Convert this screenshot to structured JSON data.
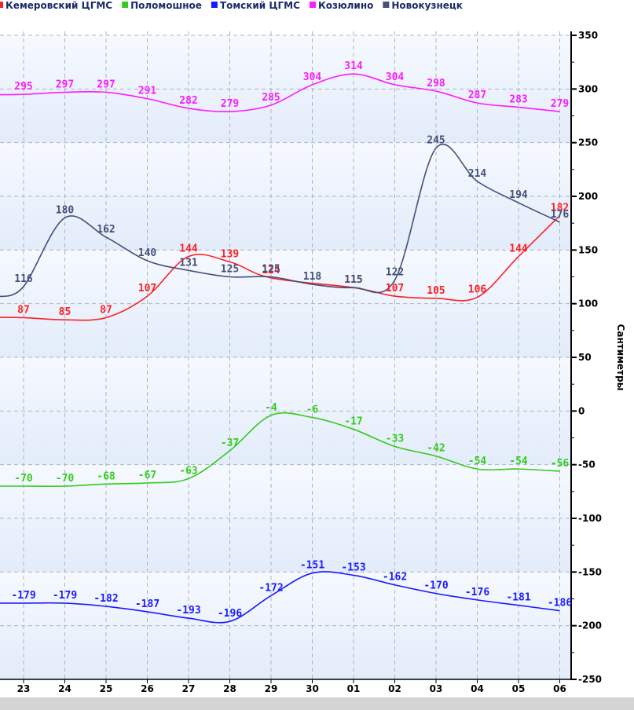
{
  "chart_data": {
    "type": "line",
    "ylabel": "Сантиметры",
    "ylim": [
      -250,
      350
    ],
    "y_ticks": [
      350,
      300,
      250,
      200,
      150,
      100,
      50,
      0,
      -50,
      -100,
      -150,
      -200,
      -250
    ],
    "categories": [
      "23",
      "24",
      "25",
      "26",
      "27",
      "28",
      "29",
      "30",
      "01",
      "02",
      "03",
      "04",
      "05",
      "06"
    ],
    "grid": true,
    "legend_position": "top",
    "series": [
      {
        "name": "Кемеровский ЦГМС",
        "color": "#ff2020",
        "values": [
          87,
          85,
          87,
          107,
          144,
          139,
          124,
          null,
          115,
          107,
          105,
          106,
          144,
          182
        ]
      },
      {
        "name": "Поломошное",
        "color": "#33cc1a",
        "values": [
          -70,
          -70,
          -68,
          -67,
          -63,
          -37,
          -4,
          -6,
          -17,
          -33,
          -42,
          -54,
          -54,
          -56
        ]
      },
      {
        "name": "Томский ЦГМС",
        "color": "#1a1aff",
        "values": [
          -179,
          -179,
          -182,
          -187,
          -193,
          -196,
          -172,
          -151,
          -153,
          -162,
          -170,
          -176,
          -181,
          -186
        ]
      },
      {
        "name": "Козюлино",
        "color": "#ff1aff",
        "values": [
          295,
          297,
          297,
          291,
          282,
          279,
          285,
          304,
          314,
          304,
          298,
          287,
          283,
          279
        ]
      },
      {
        "name": "Новокузнецк",
        "color": "#44507a",
        "values": [
          116,
          180,
          162,
          140,
          131,
          125,
          125,
          118,
          115,
          122,
          245,
          214,
          194,
          176
        ]
      }
    ]
  }
}
